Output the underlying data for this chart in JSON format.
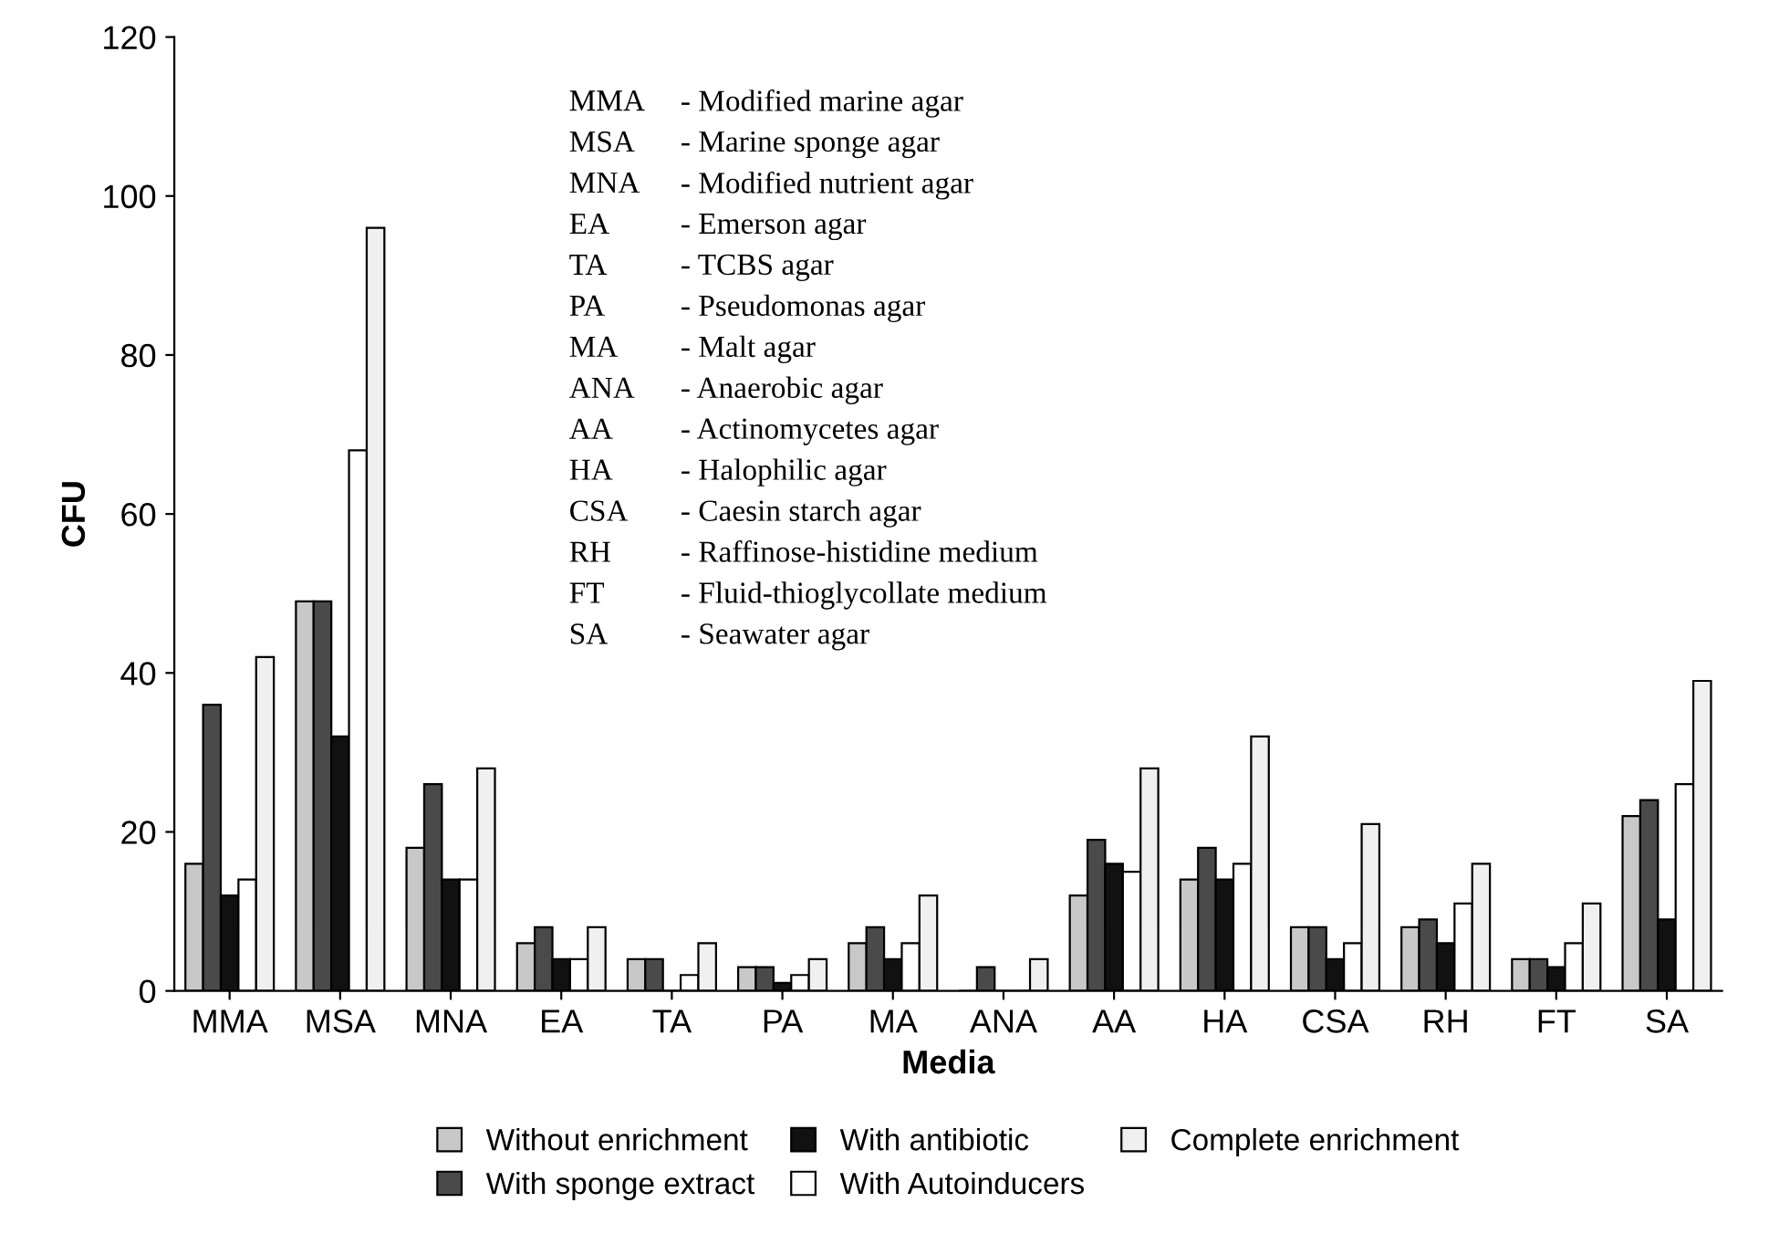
{
  "chart_data": {
    "type": "bar",
    "xlabel": "Media",
    "ylabel": "CFU",
    "categories": [
      "MMA",
      "MSA",
      "MNA",
      "EA",
      "TA",
      "PA",
      "MA",
      "ANA",
      "AA",
      "HA",
      "CSA",
      "RH",
      "FT",
      "SA"
    ],
    "series": [
      {
        "name": "Without enrichment",
        "color": "#c8c8c8",
        "values": [
          16,
          49,
          18,
          6,
          4,
          3,
          6,
          0,
          12,
          14,
          8,
          8,
          4,
          22
        ]
      },
      {
        "name": "With sponge extract",
        "color": "#4a4a4a",
        "values": [
          36,
          49,
          26,
          8,
          4,
          3,
          8,
          3,
          19,
          18,
          8,
          9,
          4,
          24
        ]
      },
      {
        "name": "With antibiotic",
        "color": "#111111",
        "values": [
          12,
          32,
          14,
          4,
          0,
          1,
          4,
          0,
          16,
          14,
          4,
          6,
          3,
          9
        ]
      },
      {
        "name": "With Autoinducers",
        "color": "#ffffff",
        "values": [
          14,
          68,
          14,
          4,
          2,
          2,
          6,
          0,
          15,
          16,
          6,
          11,
          6,
          26
        ]
      },
      {
        "name": "Complete enrichment",
        "color": "#f0f0f0",
        "values": [
          42,
          96,
          28,
          8,
          6,
          4,
          12,
          4,
          28,
          32,
          21,
          16,
          11,
          39
        ]
      }
    ],
    "ylim": [
      0,
      120
    ],
    "yticks": [
      0,
      20,
      40,
      60,
      80,
      100,
      120
    ],
    "legend": "bottom",
    "grid": false,
    "annotations": [
      "MMA - Modified marine agar",
      "MSA - Marine sponge agar",
      "MNA - Modified nutrient agar",
      "EA - Emerson agar",
      "TA - TCBS agar",
      "PA - Pseudomonas agar",
      "MA - Malt agar",
      "ANA - Anaerobic agar",
      "AA - Actinomycetes agar",
      "HA - Halophilic agar",
      "CSA - Caesin starch agar",
      "RH - Raffinose-histidine medium",
      "FT - Fluid-thioglycollate medium",
      "SA - Seawater agar"
    ]
  }
}
